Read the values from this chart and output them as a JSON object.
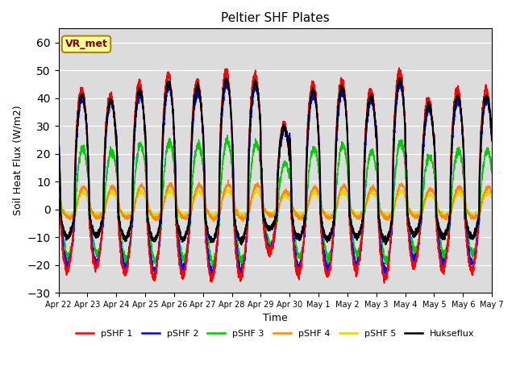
{
  "title": "Peltier SHF Plates",
  "ylabel": "Soil Heat Flux (W/m2)",
  "xlabel": "Time",
  "ylim": [
    -30,
    65
  ],
  "yticks": [
    -30,
    -20,
    -10,
    0,
    10,
    20,
    30,
    40,
    50,
    60
  ],
  "bg_color": "#dcdcdc",
  "series_colors": {
    "pSHF 1": "#ff0000",
    "pSHF 2": "#0000ff",
    "pSHF 3": "#00cc00",
    "pSHF 4": "#ff8800",
    "pSHF 5": "#dddd00",
    "Hukseflux": "#000000"
  },
  "annotation_text": "VR_met",
  "annotation_box_color": "#ffff99",
  "annotation_box_edge": "#aa8800",
  "num_days": 15,
  "dt_hours": 0.1,
  "tick_labels": [
    "Apr 22",
    "Apr 23",
    "Apr 24",
    "Apr 25",
    "Apr 26",
    "Apr 27",
    "Apr 28",
    "Apr 29",
    "Apr 30",
    "May 1",
    "May 2",
    "May 3",
    "May 4",
    "May 5",
    "May 6",
    "May 7"
  ],
  "legend_labels": [
    "pSHF 1",
    "pSHF 2",
    "pSHF 3",
    "pSHF 4",
    "pSHF 5",
    "Hukseflux"
  ]
}
